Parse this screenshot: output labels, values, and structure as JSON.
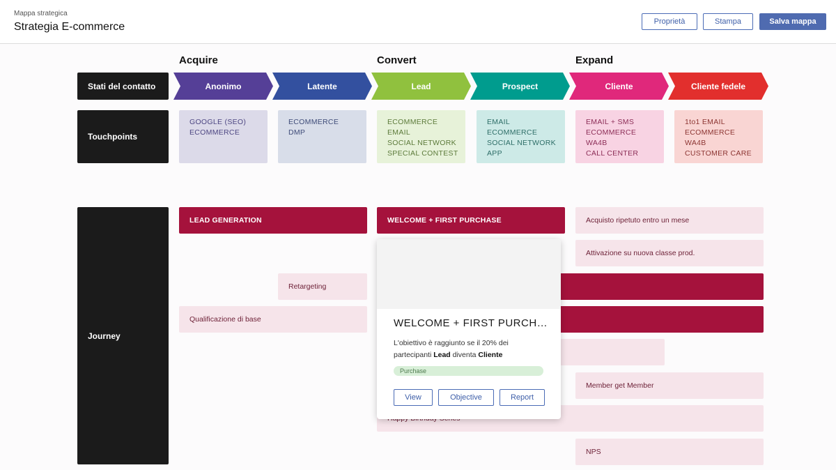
{
  "header": {
    "subtitle": "Mappa strategica",
    "title": "Strategia E-commerce",
    "buttons": {
      "properties": "Proprietà",
      "print": "Stampa",
      "save": "Salva mappa"
    }
  },
  "stage_groups": [
    "Acquire",
    "Convert",
    "Expand"
  ],
  "rows": {
    "states": "Stati del contatto",
    "touchpoints": "Touchpoints",
    "journey": "Journey"
  },
  "states": [
    {
      "label": "Anonimo",
      "color": "#553f97"
    },
    {
      "label": "Latente",
      "color": "#33509f"
    },
    {
      "label": "Lead",
      "color": "#90c13e"
    },
    {
      "label": "Prospect",
      "color": "#009c8e"
    },
    {
      "label": "Cliente",
      "color": "#e0287b"
    },
    {
      "label": "Cliente fedele",
      "color": "#e22f2d"
    }
  ],
  "touchpoints": [
    {
      "items": [
        "GOOGLE (SEO)",
        "ECOMMERCE"
      ],
      "bg": "#dcdae9",
      "fg": "#4d4682"
    },
    {
      "items": [
        "ECOMMERCE",
        "DMP"
      ],
      "bg": "#d8dde9",
      "fg": "#3e4b78"
    },
    {
      "items": [
        "ECOMMERCE",
        "EMAIL",
        "SOCIAL NETWORK",
        "SPECIAL CONTEST"
      ],
      "bg": "#e7f2d9",
      "fg": "#5c7a3a"
    },
    {
      "items": [
        "EMAIL",
        "ECOMMERCE",
        "SOCIAL NETWORK",
        "APP"
      ],
      "bg": "#cdeae7",
      "fg": "#2e6e68"
    },
    {
      "items": [
        "EMAIL + SMS",
        "ECOMMERCE",
        "WA4B",
        "CALL CENTER"
      ],
      "bg": "#f8d3e3",
      "fg": "#8c2e57"
    },
    {
      "items": [
        "1to1 EMAIL",
        "ECOMMERCE",
        "WA4B",
        "CUSTOMER CARE"
      ],
      "bg": "#f9d5d3",
      "fg": "#8c3532"
    }
  ],
  "journey": {
    "lead_generation": "LEAD GENERATION",
    "welcome_first_purchase": "WELCOME + FIRST PURCHASE",
    "retargeting": "Retargeting",
    "qualificazione": "Qualificazione di base",
    "acquisto_ripetuto": "Acquisto ripetuto entro un mese",
    "attivazione": "Attivazione su nuova classe prod.",
    "member_get_member": "Member get Member",
    "happy_birthday": "Happy Birthday Series",
    "nps": "NPS"
  },
  "popup": {
    "title": "WELCOME + FIRST PURCHA...",
    "desc_1": "L'obiettivo è raggiunto se il 20% dei partecipanti ",
    "desc_bold_1": "Lead",
    "desc_2": " diventa ",
    "desc_bold_2": "Cliente",
    "tag": "Purchase",
    "buttons": {
      "view": "View",
      "objective": "Objective",
      "report": "Report"
    }
  }
}
